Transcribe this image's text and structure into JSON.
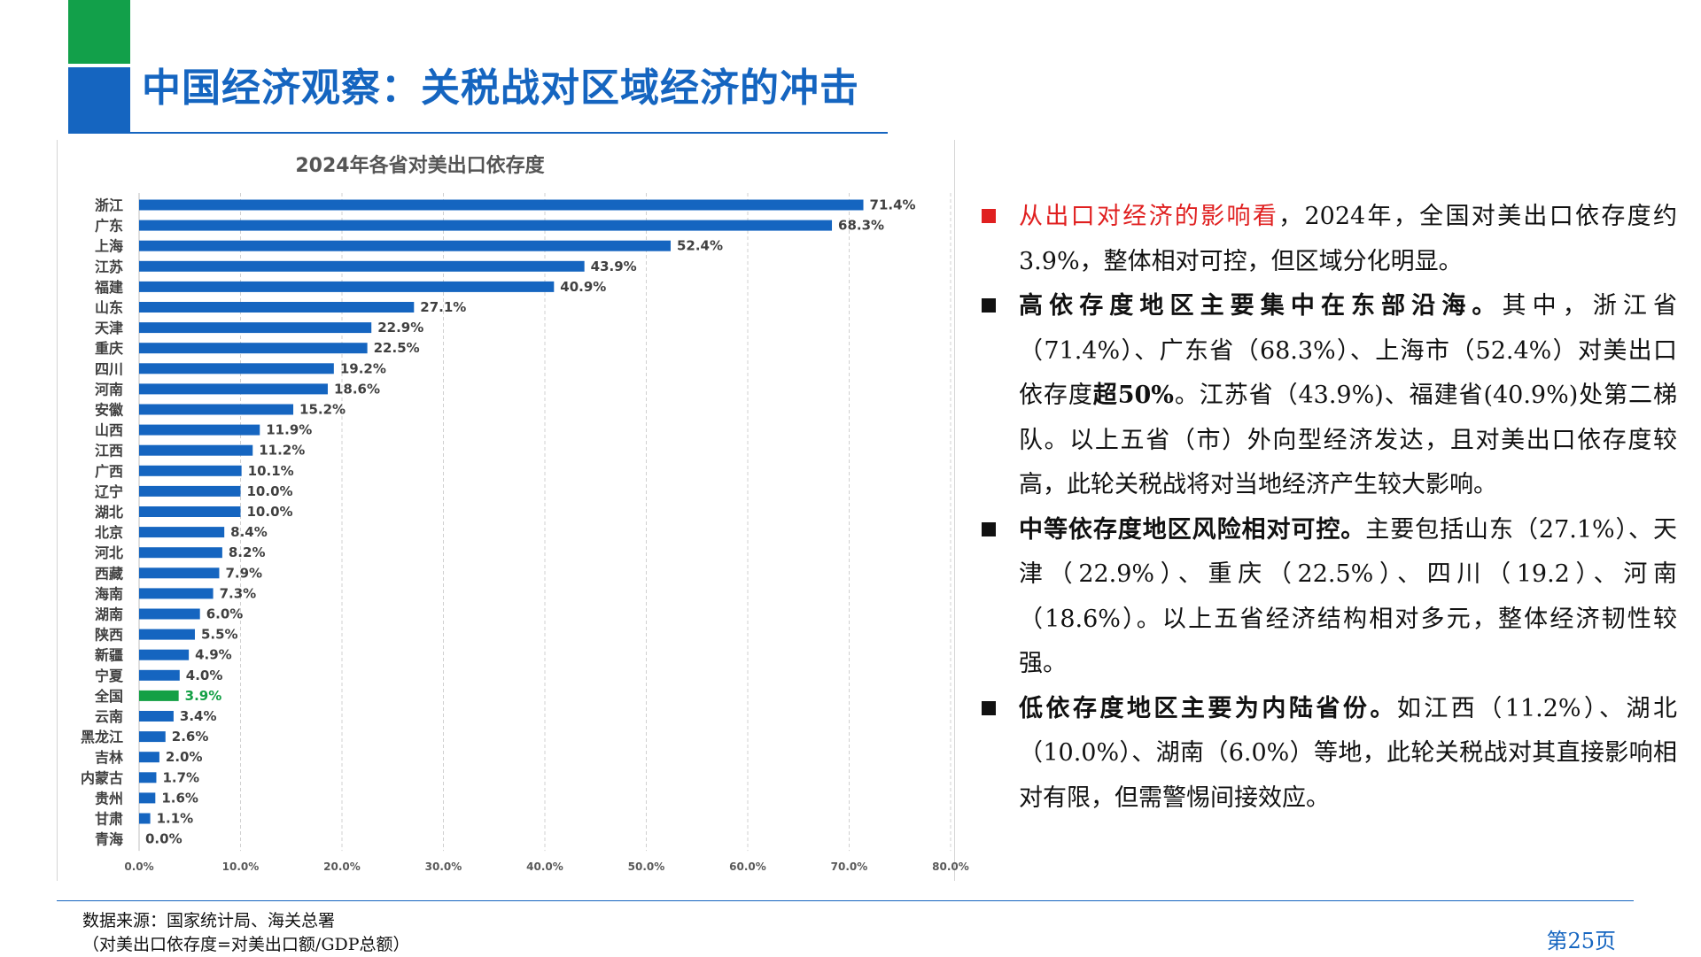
{
  "header": {
    "title": "中国经济观察：关税战对区域经济的冲击"
  },
  "colors": {
    "brand_blue": "#1565c0",
    "brand_green": "#12a04a",
    "bar_blue": "#1565c0",
    "highlight_green": "#14a045",
    "alert_red": "#e02020"
  },
  "chart_data": {
    "type": "bar",
    "orientation": "horizontal",
    "title": "2024年各省对美出口依存度",
    "categories": [
      "浙江",
      "广东",
      "上海",
      "江苏",
      "福建",
      "山东",
      "天津",
      "重庆",
      "四川",
      "河南",
      "安徽",
      "山西",
      "江西",
      "广西",
      "辽宁",
      "湖北",
      "北京",
      "河北",
      "西藏",
      "海南",
      "湖南",
      "陕西",
      "新疆",
      "宁夏",
      "全国",
      "云南",
      "黑龙江",
      "吉林",
      "内蒙古",
      "贵州",
      "甘肃",
      "青海"
    ],
    "values": [
      71.4,
      68.3,
      52.4,
      43.9,
      40.9,
      27.1,
      22.9,
      22.5,
      19.2,
      18.6,
      15.2,
      11.9,
      11.2,
      10.1,
      10.0,
      10.0,
      8.4,
      8.2,
      7.9,
      7.3,
      6.0,
      5.5,
      4.9,
      4.0,
      3.9,
      3.4,
      2.6,
      2.0,
      1.7,
      1.6,
      1.1,
      0.0
    ],
    "value_labels": [
      "71.4%",
      "68.3%",
      "52.4%",
      "43.9%",
      "40.9%",
      "27.1%",
      "22.9%",
      "22.5%",
      "19.2%",
      "18.6%",
      "15.2%",
      "11.9%",
      "11.2%",
      "10.1%",
      "10.0%",
      "10.0%",
      "8.4%",
      "8.2%",
      "7.9%",
      "7.3%",
      "6.0%",
      "5.5%",
      "4.9%",
      "4.0%",
      "3.9%",
      "3.4%",
      "2.6%",
      "2.0%",
      "1.7%",
      "1.6%",
      "1.1%",
      "0.0%"
    ],
    "highlight_category": "全国",
    "xlim": [
      0,
      80
    ],
    "xticks": [
      0,
      10,
      20,
      30,
      40,
      50,
      60,
      70,
      80
    ],
    "xtick_labels": [
      "0.0%",
      "10.0%",
      "20.0%",
      "30.0%",
      "40.0%",
      "50.0%",
      "60.0%",
      "70.0%",
      "80.0%"
    ],
    "xlabel": "",
    "ylabel": "",
    "grid": "vertical-dashed",
    "legend": "none"
  },
  "bullets": [
    {
      "lead": "从出口对经济的影响看",
      "lead_style": "red",
      "body": "，2024年，全国对美出口依存度约3.9%，整体相对可控，但区域分化明显。"
    },
    {
      "lead": "高依存度地区主要集中在东部沿海。",
      "lead_style": "bold",
      "body_a": "其中，浙江省（71.4%）、广东省（68.3%）、上海市（52.4%）对美出口依存度",
      "body_bold": "超50%",
      "body_b": "。江苏省（43.9%)、福建省(40.9%)处第二梯队。以上五省（市）外向型经济发达，且对美出口依存度较高，此轮关税战将对当地经济产生较大影响。"
    },
    {
      "lead": "中等依存度地区风险相对可控。",
      "lead_style": "bold",
      "body": "主要包括山东（27.1%）、天津（22.9%）、重庆（22.5%）、四川（19.2）、河南（18.6%）。以上五省经济结构相对多元，整体经济韧性较强。"
    },
    {
      "lead": "低依存度地区主要为内陆省份。",
      "lead_style": "bold",
      "body": "如江西（11.2%）、湖北（10.0%）、湖南（6.0%）等地，此轮关税战对其直接影响相对有限，但需警惕间接效应。"
    }
  ],
  "footer": {
    "source_line1": "数据来源：国家统计局、海关总署",
    "source_line2": "（对美出口依存度=对美出口额/GDP总额）",
    "page_number": "第25页"
  }
}
